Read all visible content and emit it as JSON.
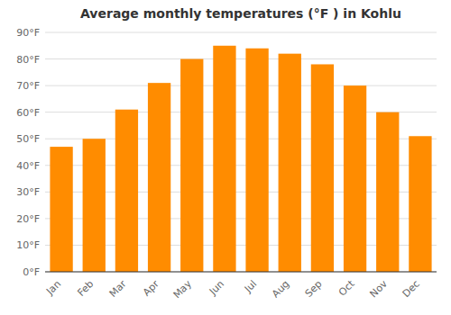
{
  "chart_data": {
    "type": "bar",
    "title": "Average monthly temperatures (°F ) in Kohlu",
    "categories": [
      "Jan",
      "Feb",
      "Mar",
      "Apr",
      "May",
      "Jun",
      "Jul",
      "Aug",
      "Sep",
      "Oct",
      "Nov",
      "Dec"
    ],
    "values": [
      47,
      50,
      61,
      71,
      80,
      85,
      84,
      82,
      78,
      70,
      60,
      51
    ],
    "color": "#FF8C00",
    "ylim": [
      0,
      90
    ],
    "yticks": [
      {
        "value": 0,
        "label": "0°F"
      },
      {
        "value": 10,
        "label": "10°F"
      },
      {
        "value": 20,
        "label": "20°F"
      },
      {
        "value": 30,
        "label": "30°F"
      },
      {
        "value": 40,
        "label": "40°F"
      },
      {
        "value": 50,
        "label": "50°F"
      },
      {
        "value": 60,
        "label": "60°F"
      },
      {
        "value": 70,
        "label": "70°F"
      },
      {
        "value": 80,
        "label": "80°F"
      },
      {
        "value": 90,
        "label": "90°F"
      }
    ],
    "grid": true
  }
}
